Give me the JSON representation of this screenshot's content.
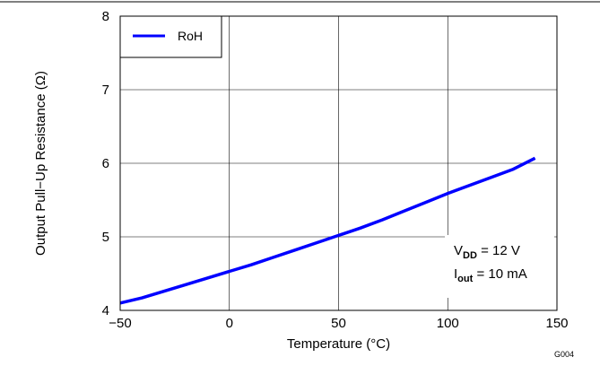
{
  "chart_data": {
    "type": "line",
    "xlabel": "Temperature (°C)",
    "ylabel": "Output Pull−Up Resistance (Ω)",
    "xlim": [
      -50,
      150
    ],
    "ylim": [
      4,
      8
    ],
    "xticks": [
      -50,
      0,
      50,
      100,
      150
    ],
    "yticks": [
      4,
      5,
      6,
      7,
      8
    ],
    "x_tick_labels": [
      "−50",
      "0",
      "50",
      "100",
      "150"
    ],
    "y_tick_labels": [
      "4",
      "5",
      "6",
      "7",
      "8"
    ],
    "grid": true,
    "legend_position": "top-left",
    "series": [
      {
        "name": "RoH",
        "color": "#0000ff",
        "x": [
          -50,
          -40,
          -30,
          -20,
          -10,
          0,
          10,
          20,
          30,
          40,
          50,
          60,
          70,
          80,
          90,
          100,
          110,
          120,
          130,
          140
        ],
        "y": [
          4.1,
          4.17,
          4.26,
          4.35,
          4.44,
          4.53,
          4.62,
          4.72,
          4.82,
          4.92,
          5.02,
          5.12,
          5.23,
          5.35,
          5.47,
          5.59,
          5.7,
          5.81,
          5.92,
          6.07
        ]
      }
    ],
    "annotation": {
      "line1_main": "V",
      "line1_sub": "DD",
      "line1_rest": " = 12 V",
      "line2_main": "I",
      "line2_sub": "out",
      "line2_rest": " = 10 mA"
    },
    "figure_id": "G004"
  }
}
